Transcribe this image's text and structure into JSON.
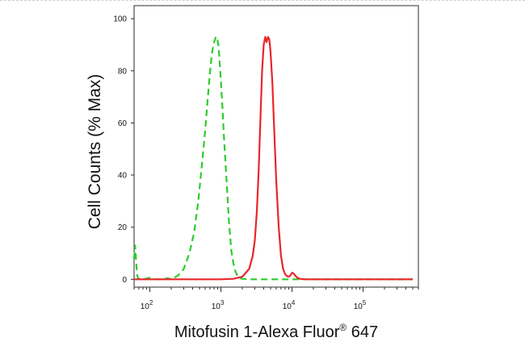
{
  "chart_data": {
    "type": "line",
    "xlabel_parts": [
      "Mitofusin 1-Alexa Fluor",
      "®",
      " 647"
    ],
    "ylabel": "Cell Counts (% Max)",
    "x_scale": "log",
    "xlim": [
      60,
      600000
    ],
    "ylim": [
      -3,
      105
    ],
    "grid": false,
    "y_ticks": [
      0,
      20,
      40,
      60,
      80,
      100
    ],
    "x_major_ticks": [
      {
        "value": 100,
        "base": "10",
        "exp": "2"
      },
      {
        "value": 1000,
        "base": "10",
        "exp": "3"
      },
      {
        "value": 10000,
        "base": "10",
        "exp": "4"
      },
      {
        "value": 100000,
        "base": "10",
        "exp": "5"
      }
    ],
    "series": [
      {
        "color": "#2ecc2e",
        "style": "dashed",
        "x": [
          60,
          62,
          64,
          66,
          68,
          72,
          80,
          100,
          120,
          150,
          180,
          200,
          250,
          300,
          360,
          420,
          480,
          540,
          600,
          650,
          700,
          750,
          800,
          850,
          880,
          920,
          950,
          1000,
          1050,
          1100,
          1200,
          1300,
          1400,
          1500,
          1600,
          1700,
          1800,
          2000,
          2500,
          3000,
          4000,
          6000,
          10000,
          20000,
          50000,
          100000,
          500000
        ],
        "y": [
          8,
          13,
          7,
          2,
          0.5,
          0,
          0,
          0.6,
          0,
          0,
          0.4,
          0,
          1.5,
          4,
          10,
          18,
          30,
          44,
          57,
          69,
          79,
          87,
          91,
          93,
          93,
          90,
          85,
          76,
          66,
          55,
          38,
          22,
          11,
          6,
          3,
          1.5,
          0.5,
          0.2,
          0,
          0,
          0,
          0,
          0,
          0,
          0,
          0,
          0
        ]
      },
      {
        "color": "#e8262b",
        "style": "solid",
        "x": [
          60,
          500,
          1000,
          1500,
          2000,
          2500,
          2800,
          3000,
          3200,
          3400,
          3600,
          3800,
          4000,
          4200,
          4400,
          4600,
          4800,
          5000,
          5300,
          5600,
          6000,
          6500,
          7000,
          7500,
          8000,
          8500,
          9000,
          9500,
          10000,
          10500,
          11000,
          12000,
          13000,
          15000,
          20000,
          50000,
          100000,
          500000
        ],
        "y": [
          0,
          0,
          0,
          0.2,
          1,
          4,
          9,
          15,
          26,
          42,
          62,
          80,
          90,
          93,
          91,
          93,
          92,
          87,
          75,
          58,
          38,
          20,
          9,
          4,
          2,
          1.2,
          1,
          1.5,
          2.5,
          2.3,
          1.5,
          0.5,
          0.2,
          0,
          0,
          0,
          0,
          0
        ]
      }
    ]
  }
}
